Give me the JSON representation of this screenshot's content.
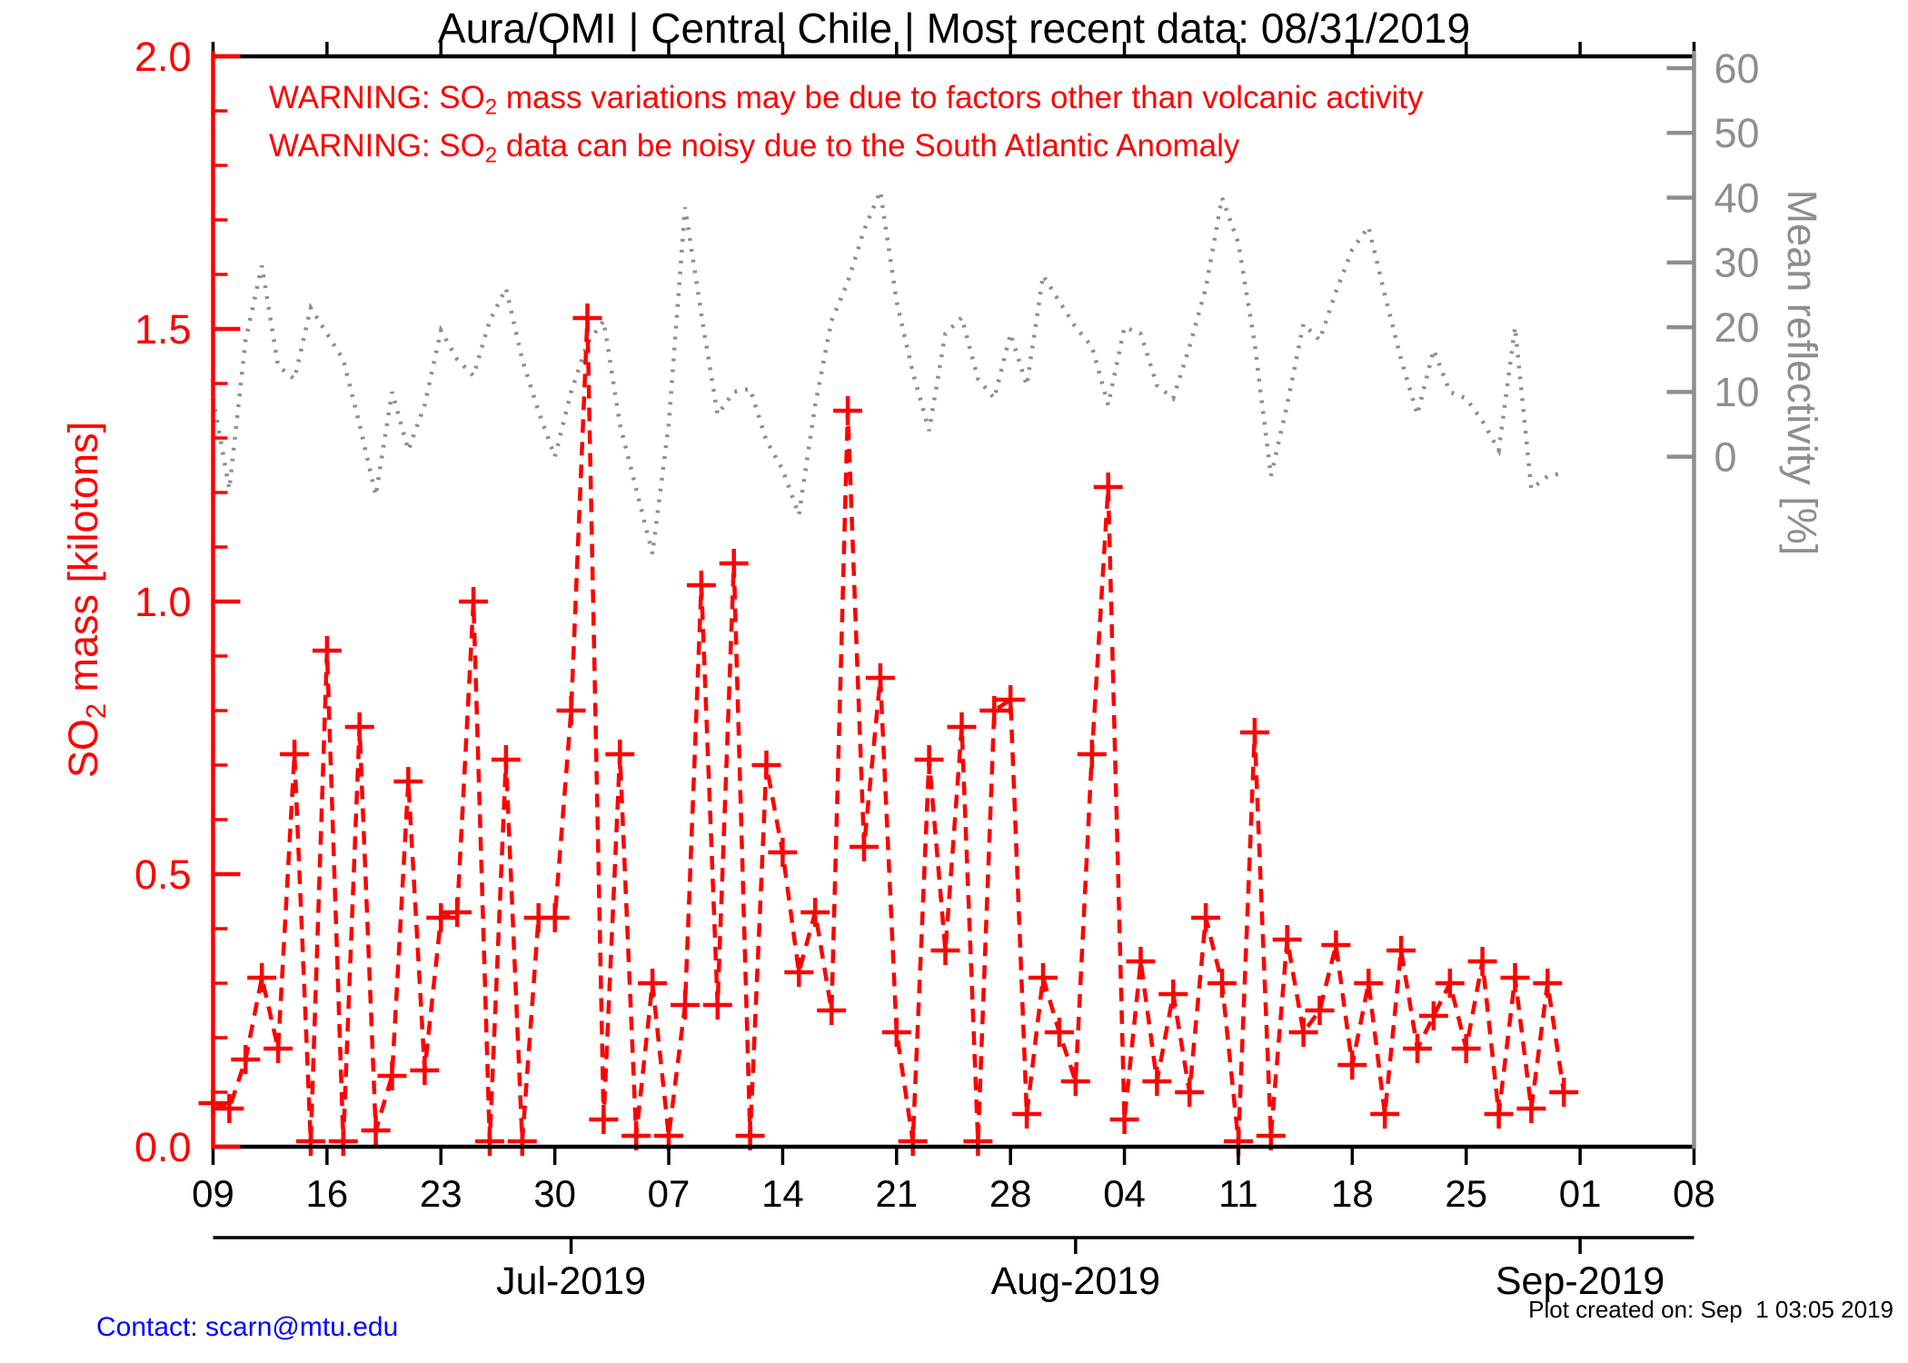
{
  "header": {
    "title": "Aura/OMI | Central Chile | Most recent data: 08/31/2019"
  },
  "warnings": {
    "line1": {
      "pre": "WARNING: SO",
      "sub": "2",
      "post": " mass variations may be due to factors other than volcanic activity"
    },
    "line2": {
      "pre": "WARNING: SO",
      "sub": "2",
      "post": " data can be noisy due to the South Atlantic Anomaly"
    }
  },
  "axes": {
    "left": {
      "label_pre": "SO",
      "label_sub": "2",
      "label_post": " mass [kilotons]",
      "color": "#ff0000",
      "ticks": [
        "0.0",
        "0.5",
        "1.0",
        "1.5",
        "2.0"
      ]
    },
    "right": {
      "label": "Mean reflectivity [%]",
      "color": "#8e8e8e",
      "ticks": [
        "0",
        "10",
        "20",
        "30",
        "40",
        "50",
        "60"
      ]
    },
    "x": {
      "week_labels": [
        "09",
        "16",
        "23",
        "30",
        "07",
        "14",
        "21",
        "28",
        "04",
        "11",
        "18",
        "25",
        "01",
        "08"
      ],
      "month_labels": [
        "Jul-2019",
        "Aug-2019",
        "Sep-2019"
      ]
    }
  },
  "footer": {
    "contact": "Contact: scarn@mtu.edu",
    "created": "Plot created on: Sep  1 03:05 2019"
  },
  "chart_data": {
    "type": "line",
    "title": "Aura/OMI | Central Chile | Most recent data: 08/31/2019",
    "xlabel": "",
    "ylabel_left": "SO2 mass [kilotons]",
    "ylabel_right": "Mean reflectivity [%]",
    "x_start_date": "2019-06-09",
    "x_axis_end_date": "2019-09-08",
    "left_ylim": [
      0.0,
      2.0
    ],
    "left_tick_values": [
      0.0,
      0.5,
      1.0,
      1.5,
      2.0
    ],
    "left_minor_step": 0.1,
    "right_tick_values": [
      0,
      10,
      20,
      30,
      40,
      50,
      60
    ],
    "x_week_tick_days": [
      0,
      7,
      14,
      21,
      28,
      35,
      42,
      49,
      56,
      63,
      70,
      77,
      84,
      91
    ],
    "x_month_tick_days": [
      22,
      53,
      84
    ],
    "grid": false,
    "legend": "none",
    "dates": [
      "06-09",
      "06-10",
      "06-11",
      "06-12",
      "06-13",
      "06-14",
      "06-15",
      "06-16",
      "06-17",
      "06-18",
      "06-19",
      "06-20",
      "06-21",
      "06-22",
      "06-23",
      "06-24",
      "06-25",
      "06-26",
      "06-27",
      "06-28",
      "06-29",
      "06-30",
      "07-01",
      "07-02",
      "07-03",
      "07-04",
      "07-05",
      "07-06",
      "07-07",
      "07-08",
      "07-09",
      "07-10",
      "07-11",
      "07-12",
      "07-13",
      "07-14",
      "07-15",
      "07-16",
      "07-17",
      "07-18",
      "07-19",
      "07-20",
      "07-21",
      "07-22",
      "07-23",
      "07-24",
      "07-25",
      "07-26",
      "07-27",
      "07-28",
      "07-29",
      "07-30",
      "07-31",
      "08-01",
      "08-02",
      "08-03",
      "08-04",
      "08-05",
      "08-06",
      "08-07",
      "08-08",
      "08-09",
      "08-10",
      "08-11",
      "08-12",
      "08-13",
      "08-14",
      "08-15",
      "08-16",
      "08-17",
      "08-18",
      "08-19",
      "08-20",
      "08-21",
      "08-22",
      "08-23",
      "08-24",
      "08-25",
      "08-26",
      "08-27",
      "08-28",
      "08-29",
      "08-30",
      "08-31"
    ],
    "series": [
      {
        "name": "SO2 mass",
        "axis": "left",
        "units": "kilotons",
        "color": "#ff0000",
        "line_style": "dashed",
        "marker": "plus",
        "values": [
          0.08,
          0.07,
          0.16,
          0.31,
          0.18,
          0.72,
          0.01,
          0.91,
          0.01,
          0.77,
          0.03,
          0.13,
          0.67,
          0.14,
          0.42,
          0.43,
          1.0,
          0.01,
          0.71,
          0.01,
          0.42,
          0.42,
          0.8,
          1.52,
          0.05,
          0.72,
          0.02,
          0.3,
          0.02,
          0.26,
          1.03,
          0.26,
          1.07,
          0.02,
          0.7,
          0.54,
          0.32,
          0.43,
          0.25,
          1.35,
          0.55,
          0.86,
          0.21,
          0.01,
          0.71,
          0.36,
          0.77,
          0.01,
          0.8,
          0.82,
          0.06,
          0.31,
          0.21,
          0.12,
          0.72,
          1.21,
          0.05,
          0.34,
          0.12,
          0.28,
          0.1,
          0.42,
          0.3,
          0.01,
          0.76,
          0.02,
          0.38,
          0.21,
          0.25,
          0.37,
          0.15,
          0.3,
          0.06,
          0.36,
          0.18,
          0.24,
          0.3,
          0.18,
          0.34,
          0.06,
          0.31,
          0.07,
          0.3,
          0.1
        ]
      },
      {
        "name": "Mean reflectivity",
        "axis": "right",
        "units": "%",
        "color": "#8e8e8e",
        "line_style": "dotted",
        "marker": "none",
        "values": [
          9,
          -5,
          18,
          29.5,
          14,
          12,
          23,
          19,
          15,
          5,
          -6,
          10,
          1,
          8,
          19.5,
          15,
          12.5,
          21,
          26,
          15,
          7,
          0,
          10,
          17.5,
          21,
          5,
          -5,
          -15,
          5,
          38.5,
          22,
          6.5,
          10,
          10.5,
          2.5,
          -2,
          -9,
          8,
          21,
          27,
          35,
          41,
          24,
          13,
          4,
          19,
          21.5,
          12,
          9,
          19,
          11,
          28,
          24,
          20,
          17,
          8,
          20,
          19,
          11,
          9,
          17,
          26,
          40,
          33,
          17.5,
          -3,
          8,
          20.5,
          18,
          25.5,
          32,
          35.5,
          25,
          15,
          6.5,
          16.5,
          10,
          9,
          5.5,
          1,
          20,
          -5,
          -3,
          -2.5
        ]
      }
    ]
  }
}
